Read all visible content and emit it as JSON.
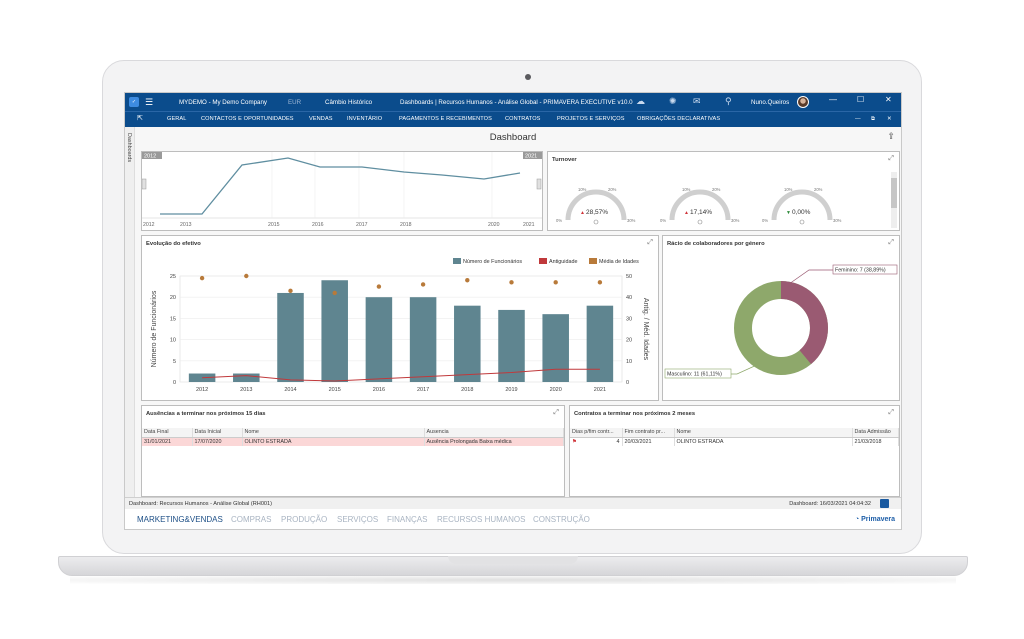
{
  "window": {
    "company": "MYDEMO - My Demo Company",
    "currency": "EUR",
    "exchange": "Câmbio Histórico",
    "title": "Dashboards | Recursos Humanos - Análise Global - PRIMAVERA EXECUTIVE v10.0",
    "user": "Nuno.Queiros"
  },
  "menu": [
    "GERAL",
    "CONTACTOS E OPORTUNIDADES",
    "VENDAS",
    "INVENTÁRIO",
    "PAGAMENTOS E RECEBIMENTOS",
    "CONTRATOS",
    "PROJETOS E SERVIÇOS",
    "OBRIGAÇÕES DECLARATIVAS"
  ],
  "side_tab": "Dashboards",
  "dashboard_title": "Dashboard",
  "timeline": {
    "badge_left": "2012",
    "badge_right": "2021",
    "ticks": [
      "2012",
      "2013",
      "2015",
      "2016",
      "2017",
      "2018",
      "2020",
      "2021"
    ]
  },
  "turnover": {
    "title": "Turnover",
    "gauges": [
      {
        "value_label": "28,57%",
        "trend": "up",
        "color": "#d0343a"
      },
      {
        "value_label": "17,14%",
        "trend": "up",
        "color": "#d0343a"
      },
      {
        "value_label": "0,00%",
        "trend": "down",
        "color": "#2e8b3a"
      }
    ],
    "gauge_ticks": {
      "low": "0%",
      "q1": "10%",
      "q2": "20%",
      "high": "30%"
    }
  },
  "evolution": {
    "title": "Evolução do efetivo",
    "legend": [
      "Número de Funcionários",
      "Antiguidade",
      "Média de Idades"
    ],
    "ylabel_left": "Número de Funcionários",
    "ylabel_right": "Antig. / Méd. Idades"
  },
  "chart_data": {
    "type": "bar",
    "title": "Evolução do efetivo",
    "categories": [
      "2012",
      "2013",
      "2014",
      "2015",
      "2016",
      "2017",
      "2018",
      "2019",
      "2020",
      "2021"
    ],
    "series": [
      {
        "name": "Número de Funcionários",
        "type": "bar",
        "axis": "left",
        "color": "#5f8590",
        "values": [
          2,
          2,
          21,
          24,
          20,
          20,
          18,
          17,
          16,
          18
        ]
      },
      {
        "name": "Antiguidade",
        "type": "line",
        "axis": "right",
        "color": "#c0393b",
        "values": [
          2,
          3,
          1,
          0.5,
          1.5,
          2.5,
          3.5,
          4.5,
          6,
          6
        ]
      },
      {
        "name": "Média de Idades",
        "type": "scatter",
        "axis": "right",
        "color": "#b87a3a",
        "values": [
          49,
          50,
          43,
          42,
          45,
          46,
          48,
          47,
          47,
          47
        ]
      }
    ],
    "y_left": {
      "min": 0,
      "max": 25,
      "ticks": [
        0,
        5,
        10,
        15,
        20,
        25
      ]
    },
    "y_right": {
      "min": 0,
      "max": 50,
      "ticks": [
        0,
        10,
        20,
        30,
        40,
        50
      ]
    },
    "legend_position": "top-right",
    "grid": true
  },
  "gender": {
    "title": "Rácio de colaboradores por género",
    "female_label": "Feminino: 7 (38,89%)",
    "male_label": "Masculino: 11 (61,11%)",
    "female_value": 7,
    "male_value": 11,
    "female_color": "#9a5a72",
    "male_color": "#8ea86b"
  },
  "absences": {
    "title": "Ausências a terminar nos próximos 15 dias",
    "columns": [
      "Data Final",
      "Data Inicial",
      "Nome",
      "Ausencia"
    ],
    "rows": [
      [
        "31/01/2021",
        "17/07/2020",
        "OLINTO ESTRADA",
        "Ausência Prolongada Baixa médica"
      ]
    ]
  },
  "contracts": {
    "title": "Contratos a terminar nos próximos 2 meses",
    "columns": [
      "Dias p/fim contr...",
      "Fim contrato pr...",
      "Nome",
      "Data Admissão"
    ],
    "rows": [
      [
        "4",
        "20/03/2021",
        "OLINTO ESTRADA",
        "21/03/2018"
      ]
    ]
  },
  "status": {
    "left": "Dashboard: Recursos Humanos - Análise Global (RH001)",
    "right": "Dashboard: 16/03/2021 04:04:32"
  },
  "modules": [
    "MARKETING&VENDAS",
    "COMPRAS",
    "PRODUÇÃO",
    "SERVIÇOS",
    "FINANÇAS",
    "RECURSOS HUMANOS",
    "CONSTRUÇÃO"
  ],
  "brand": "Primavera"
}
